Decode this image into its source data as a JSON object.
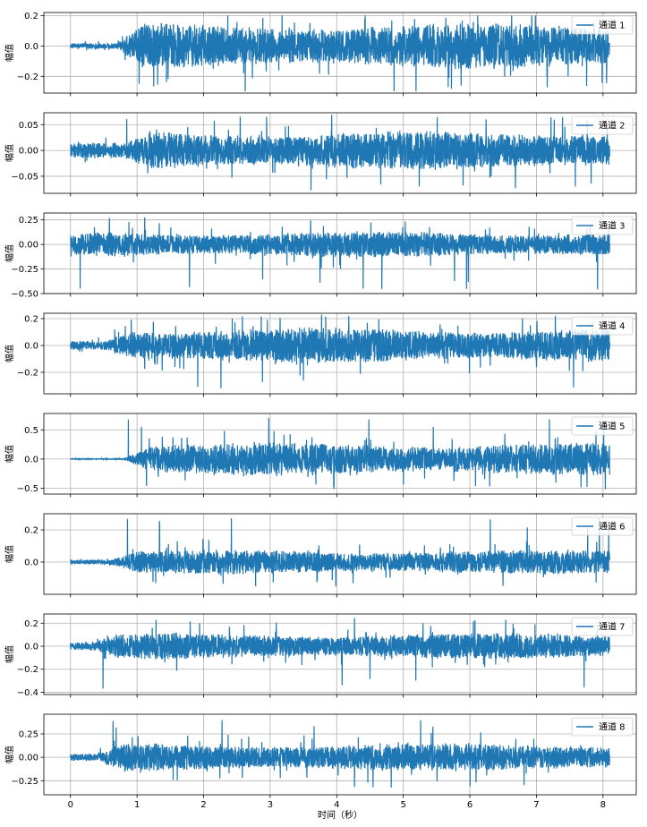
{
  "chart_data": {
    "type": "line",
    "xlabel": "时间（秒）",
    "xlim": [
      -0.4,
      8.5
    ],
    "x_ticks": [
      0,
      1,
      2,
      3,
      4,
      5,
      6,
      7,
      8
    ],
    "duration": 8.1,
    "grid": true,
    "legend_placement": "upper-right",
    "series_color": "#1f77b4",
    "subplots": [
      {
        "name": "通道 1",
        "ylabel": "幅值",
        "ylim": [
          -0.31,
          0.22
        ],
        "yticks": [
          -0.2,
          0.0,
          0.2
        ],
        "tick_labels": [
          "−0.2",
          "0.0",
          "0.2"
        ],
        "onset": 0.7,
        "pre_amp": 0.01,
        "amp": 0.08,
        "peak_max": 0.2,
        "peak_min": -0.3
      },
      {
        "name": "通道 2",
        "ylabel": "幅值",
        "ylim": [
          -0.083,
          0.073
        ],
        "yticks": [
          -0.05,
          0.0,
          0.05
        ],
        "tick_labels": [
          "−0.05",
          "0.00",
          "0.05"
        ],
        "onset": 0.8,
        "pre_amp": 0.008,
        "amp": 0.02,
        "peak_max": 0.072,
        "peak_min": -0.078
      },
      {
        "name": "通道 3",
        "ylabel": "幅值",
        "ylim": [
          -0.5,
          0.32
        ],
        "yticks": [
          -0.5,
          -0.25,
          0.0,
          0.25
        ],
        "tick_labels": [
          "−0.50",
          "−0.25",
          "0.00",
          "0.25"
        ],
        "onset": 0.0,
        "pre_amp": 0.05,
        "amp": 0.07,
        "peak_max": 0.28,
        "peak_min": -0.46
      },
      {
        "name": "通道 4",
        "ylabel": "幅值",
        "ylim": [
          -0.36,
          0.24
        ],
        "yticks": [
          -0.2,
          0.0,
          0.2
        ],
        "tick_labels": [
          "−0.2",
          "0.0",
          "0.2"
        ],
        "onset": 0.5,
        "pre_amp": 0.02,
        "amp": 0.07,
        "peak_max": 0.23,
        "peak_min": -0.34
      },
      {
        "name": "通道 5",
        "ylabel": "幅值",
        "ylim": [
          -0.6,
          0.78
        ],
        "yticks": [
          -0.5,
          0.0,
          0.5
        ],
        "tick_labels": [
          "−0.5",
          "0.0",
          "0.5"
        ],
        "onset": 0.8,
        "pre_amp": 0.004,
        "amp": 0.15,
        "peak_max": 0.72,
        "peak_min": -0.52
      },
      {
        "name": "通道 6",
        "ylabel": "幅值",
        "ylim": [
          -0.2,
          0.3
        ],
        "yticks": [
          0.0,
          0.2
        ],
        "tick_labels": [
          "0.0",
          "0.2"
        ],
        "onset": 0.6,
        "pre_amp": 0.01,
        "amp": 0.04,
        "peak_max": 0.28,
        "peak_min": -0.16
      },
      {
        "name": "通道 7",
        "ylabel": "幅值",
        "ylim": [
          -0.42,
          0.28
        ],
        "yticks": [
          -0.4,
          -0.2,
          0.0,
          0.2
        ],
        "tick_labels": [
          "−0.4",
          "−0.2",
          "0.0",
          "0.2"
        ],
        "onset": 0.3,
        "pre_amp": 0.02,
        "amp": 0.06,
        "peak_max": 0.25,
        "peak_min": -0.38
      },
      {
        "name": "通道 8",
        "ylabel": "幅值",
        "ylim": [
          -0.4,
          0.46
        ],
        "yticks": [
          -0.25,
          0.0,
          0.25
        ],
        "tick_labels": [
          "−0.25",
          "0.00",
          "0.25"
        ],
        "onset": 0.4,
        "pre_amp": 0.02,
        "amp": 0.08,
        "peak_max": 0.42,
        "peak_min": -0.33
      }
    ]
  }
}
